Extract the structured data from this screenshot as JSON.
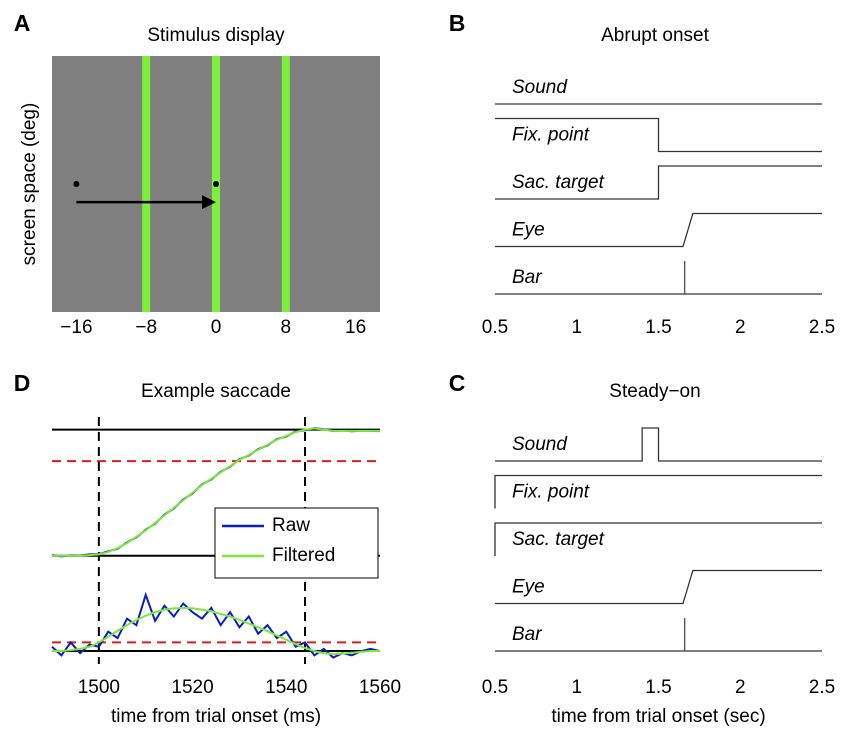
{
  "chart_data": [
    {
      "type": "stimulus",
      "label": "A",
      "title": "Stimulus display",
      "ylabel": "screen space (deg)",
      "background": "#808080",
      "xlim": [
        -18.8,
        18.8
      ],
      "ylim": [
        -12,
        12
      ],
      "xticks": [
        {
          "value": -16,
          "label": "−16"
        },
        {
          "value": -8,
          "label": "−8"
        },
        0,
        8,
        16
      ],
      "bars": [
        -8,
        0,
        8
      ],
      "bar_color": "#7df03c",
      "points": {
        "x": [
          -16,
          0
        ],
        "y": [
          0,
          0
        ]
      },
      "arrow": {
        "x": [
          -16,
          0
        ],
        "y": -1.7
      }
    },
    {
      "type": "timing",
      "label": "B",
      "title": "Abrupt onset",
      "xlim": [
        0.5,
        2.5
      ],
      "xticks": [
        0.5,
        1,
        1.5,
        2,
        2.5
      ],
      "ylim": [
        0,
        1
      ],
      "series": [
        {
          "name": "Sound",
          "color": "#333333",
          "x": [
            0.5,
            2.5
          ],
          "values": [
            0,
            0
          ]
        },
        {
          "name": "Fix. point",
          "color": "#333333",
          "x": [
            0.5,
            1.5,
            1.5,
            2.5
          ],
          "values": [
            1,
            1,
            0,
            0
          ]
        },
        {
          "name": "Sac. target",
          "color": "#333333",
          "x": [
            0.5,
            1.5,
            1.5,
            2.5
          ],
          "values": [
            0,
            0,
            1,
            1
          ]
        },
        {
          "name": "Eye",
          "color": "#333333",
          "x": [
            0.5,
            1.65,
            1.71,
            2.5
          ],
          "values": [
            0,
            0,
            1,
            1
          ]
        },
        {
          "name": "Bar",
          "color": "#555555",
          "x": [
            0.5,
            1.66,
            1.66,
            1.66,
            2.5
          ],
          "values": [
            0,
            0,
            1,
            0,
            0
          ]
        }
      ]
    },
    {
      "type": "timing",
      "label": "C",
      "title": "Steady−on",
      "xlabel": "time from trial onset (sec)",
      "xlim": [
        0.5,
        2.5
      ],
      "xticks": [
        0.5,
        1,
        1.5,
        2,
        2.5
      ],
      "ylim": [
        0,
        1
      ],
      "series": [
        {
          "name": "Sound",
          "color": "#333333",
          "x": [
            0.5,
            1.4,
            1.4,
            1.5,
            1.5,
            2.5
          ],
          "values": [
            0,
            0,
            1,
            1,
            0,
            0
          ]
        },
        {
          "name": "Fix. point",
          "color": "#333333",
          "x": [
            0.5,
            0.5,
            2.5
          ],
          "values": [
            0,
            1,
            1
          ]
        },
        {
          "name": "Sac. target",
          "color": "#333333",
          "x": [
            0.5,
            0.5,
            2.5
          ],
          "values": [
            0,
            1,
            1
          ]
        },
        {
          "name": "Eye",
          "color": "#333333",
          "x": [
            0.5,
            1.65,
            1.71,
            2.5
          ],
          "values": [
            0,
            0,
            1,
            1
          ]
        },
        {
          "name": "Bar",
          "color": "#555555",
          "x": [
            0.5,
            1.66,
            1.66,
            1.66,
            2.5
          ],
          "values": [
            0,
            0,
            1,
            0,
            0
          ]
        }
      ]
    },
    {
      "type": "saccade",
      "label": "D",
      "title": "Example saccade",
      "xlabel": "time from trial onset (ms)",
      "xlim": [
        1490,
        1560
      ],
      "xticks": [
        1500,
        1520,
        1540,
        1560
      ],
      "ylim": [
        -0.05,
        1.1
      ],
      "y2lim": [
        -0.3,
        1.6
      ],
      "hlines": [
        0,
        1
      ],
      "y2hlines": [
        0
      ],
      "threshold": 0.75,
      "y2threshold": 0.2,
      "threshold_color": "#d62020",
      "vlines": [
        1500,
        1544
      ],
      "x": [
        1490,
        1492,
        1494,
        1496,
        1498,
        1500,
        1502,
        1504,
        1506,
        1508,
        1510,
        1512,
        1514,
        1516,
        1518,
        1520,
        1522,
        1524,
        1526,
        1528,
        1530,
        1532,
        1534,
        1536,
        1538,
        1540,
        1542,
        1544,
        1546,
        1548,
        1550,
        1552,
        1554,
        1556,
        1558,
        1560
      ],
      "series": [
        {
          "name": "Raw",
          "color": "#0a1fbf",
          "values": [
            0.005,
            -0.005,
            0.003,
            0.002,
            0.01,
            0.012,
            0.035,
            0.055,
            0.105,
            0.145,
            0.205,
            0.255,
            0.325,
            0.375,
            0.445,
            0.495,
            0.565,
            0.605,
            0.665,
            0.705,
            0.765,
            0.795,
            0.845,
            0.875,
            0.925,
            0.945,
            0.985,
            0.995,
            1.012,
            1.003,
            0.988,
            0.993,
            0.987,
            0.992,
            0.99,
            0.988
          ],
          "velocity": [
            0.1,
            -0.1,
            0.2,
            -0.05,
            0.15,
            0.1,
            0.45,
            0.3,
            0.75,
            0.6,
            1.3,
            0.7,
            1.05,
            0.8,
            1.1,
            0.9,
            0.75,
            1.0,
            0.6,
            0.9,
            0.55,
            0.8,
            0.4,
            0.6,
            0.3,
            0.45,
            0.1,
            0.2,
            -0.1,
            0.05,
            -0.15,
            -0.05,
            -0.1,
            0,
            0.05,
            0
          ]
        },
        {
          "name": "Filtered",
          "color": "#7ee83a",
          "values": [
            0,
            0,
            0,
            0,
            0.005,
            0.01,
            0.03,
            0.06,
            0.1,
            0.15,
            0.2,
            0.26,
            0.32,
            0.38,
            0.44,
            0.5,
            0.56,
            0.61,
            0.66,
            0.71,
            0.76,
            0.8,
            0.84,
            0.88,
            0.92,
            0.95,
            0.98,
            1.0,
            1.01,
            1.0,
            0.99,
            0.99,
            0.99,
            0.99,
            0.99,
            0.99
          ],
          "velocity": [
            0,
            0,
            0.02,
            0.05,
            0.1,
            0.2,
            0.33,
            0.47,
            0.6,
            0.72,
            0.82,
            0.9,
            0.96,
            0.99,
            1.0,
            0.99,
            0.96,
            0.92,
            0.86,
            0.8,
            0.72,
            0.64,
            0.55,
            0.46,
            0.36,
            0.26,
            0.16,
            0.07,
            0,
            -0.05,
            -0.07,
            -0.06,
            -0.04,
            -0.02,
            0,
            0
          ]
        }
      ]
    }
  ]
}
